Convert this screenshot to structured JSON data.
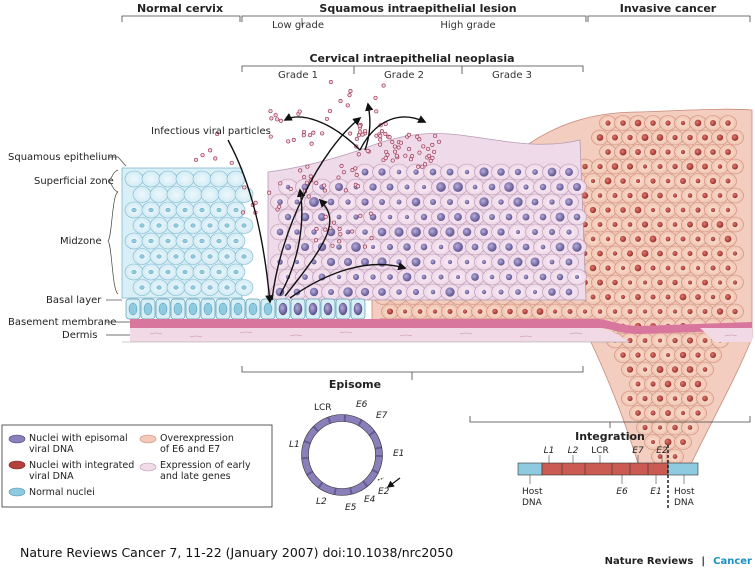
{
  "headers": {
    "normal": "Normal cervix",
    "sil": "Squamous intraepithelial lesion",
    "low": "Low grade",
    "high": "High grade",
    "invasive": "Invasive cancer",
    "cin": "Cervical intraepithelial neoplasia",
    "grade1": "Grade 1",
    "grade2": "Grade 2",
    "grade3": "Grade 3"
  },
  "labels": {
    "viral": "Infectious viral particles",
    "squamous": "Squamous epithelium",
    "superficial": "Superficial zone",
    "midzone": "Midzone",
    "basal": "Basal layer",
    "basement": "Basement membrane",
    "dermis": "Dermis"
  },
  "episome": {
    "title": "Episome",
    "genes": [
      "LCR",
      "E6",
      "E7",
      "E1",
      "E2",
      "E4",
      "E5",
      "L2",
      "L1"
    ]
  },
  "integration": {
    "title": "Integration",
    "top_genes": [
      "L1",
      "L2",
      "LCR",
      "E7",
      "E2"
    ],
    "bottom_genes": [
      "E6",
      "E1"
    ],
    "host_left_1": "Host",
    "host_left_2": "DNA",
    "host_right_1": "Host",
    "host_right_2": "DNA"
  },
  "legend": {
    "items": [
      {
        "line1": "Nuclei with episomal",
        "line2": "viral DNA",
        "color": "#8a7fb8"
      },
      {
        "line1": "Nuclei with integrated",
        "line2": "viral DNA",
        "color": "#b5413d"
      },
      {
        "line1": "Normal nuclei",
        "line2": "",
        "color": "#8fcbe0"
      },
      {
        "line1": "Overexpression",
        "line2": "of E6 and E7",
        "color": "#f4c9b8"
      },
      {
        "line1": "Expression of early",
        "line2": "and late genes",
        "color": "#f1dbe8"
      }
    ]
  },
  "citation": "Nature Reviews Cancer 7, 11-22 (January 2007) doi:10.1038/nrc2050",
  "brand": {
    "left": "Nature Reviews",
    "sep": "|",
    "right": "Cancer"
  }
}
